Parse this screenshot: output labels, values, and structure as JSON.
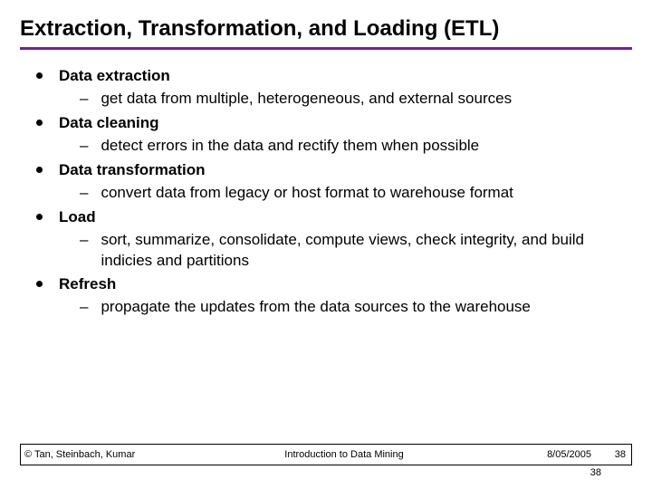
{
  "title": "Extraction, Transformation, and Loading (ETL)",
  "title_rule_color": "#6a2a8a",
  "text_color": "#000000",
  "bullet_color": "#000000",
  "background_color": "#ffffff",
  "font": {
    "family": "Arial",
    "title_size_pt": 24,
    "body_size_pt": 17,
    "footer_size_pt": 11
  },
  "bullets": [
    {
      "label": "Data extraction",
      "subs": [
        "get data from multiple, heterogeneous, and external sources"
      ]
    },
    {
      "label": "Data cleaning",
      "subs": [
        "detect errors in the data and rectify them when possible"
      ]
    },
    {
      "label": "Data transformation",
      "subs": [
        "convert data from legacy or host format to warehouse format"
      ]
    },
    {
      "label": "Load",
      "subs": [
        "sort, summarize, consolidate, compute views, check integrity, and build indicies and partitions"
      ]
    },
    {
      "label": "Refresh",
      "subs": [
        "propagate the updates from the data sources to the warehouse"
      ]
    }
  ],
  "footer": {
    "left": "© Tan, Steinbach, Kumar",
    "center": "Introduction to Data Mining",
    "date": "8/05/2005",
    "page": "38"
  },
  "page_shadow": "38"
}
